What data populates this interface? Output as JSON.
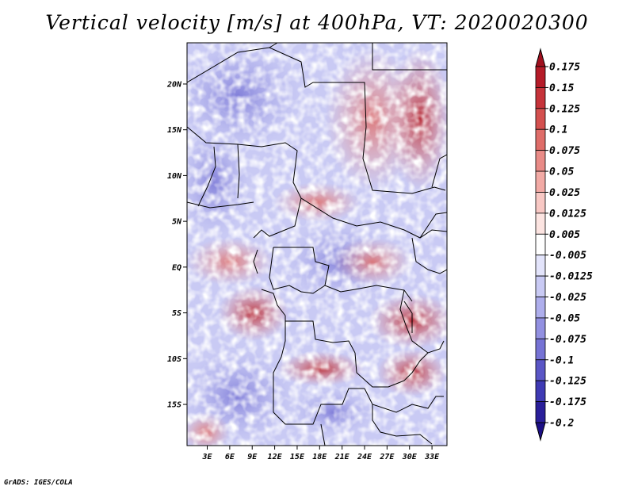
{
  "title": "Vertical velocity [m/s] at 400hPa, VT: 2020020300",
  "footer": "GrADS: IGES/COLA",
  "map": {
    "variable": "Vertical velocity",
    "units": "m/s",
    "level": "400hPa",
    "valid_time": "2020020300",
    "lat_labels": [
      "20N",
      "15N",
      "10N",
      "5N",
      "EQ",
      "5S",
      "10S",
      "15S"
    ],
    "lat_values": [
      20,
      15,
      10,
      5,
      0,
      -5,
      -10,
      -15
    ],
    "lon_labels": [
      "3E",
      "6E",
      "9E",
      "12E",
      "15E",
      "18E",
      "21E",
      "24E",
      "27E",
      "30E",
      "33E"
    ],
    "lon_values": [
      3,
      6,
      9,
      12,
      15,
      18,
      21,
      24,
      27,
      30,
      33
    ],
    "lon_range": [
      0.3,
      35
    ],
    "lat_range": [
      -19.5,
      24.5
    ]
  },
  "colorbar": {
    "labels": [
      "0.175",
      "0.15",
      "0.125",
      "0.1",
      "0.075",
      "0.05",
      "0.025",
      "0.0125",
      "0.005",
      "-0.005",
      "-0.0125",
      "-0.025",
      "-0.05",
      "-0.075",
      "-0.1",
      "-0.125",
      "-0.175",
      "-0.2"
    ],
    "colors": [
      "#a0101e",
      "#b51b28",
      "#c6333a",
      "#d4504f",
      "#df6d69",
      "#e98b87",
      "#f2aaa5",
      "#f8c8c4",
      "#fce4e1",
      "#ffffff",
      "#e3e4fb",
      "#c9caf4",
      "#aeaeec",
      "#9290e1",
      "#7673d5",
      "#5a56c6",
      "#3f3ab4",
      "#2a1f9a",
      "#1c0f86"
    ]
  }
}
